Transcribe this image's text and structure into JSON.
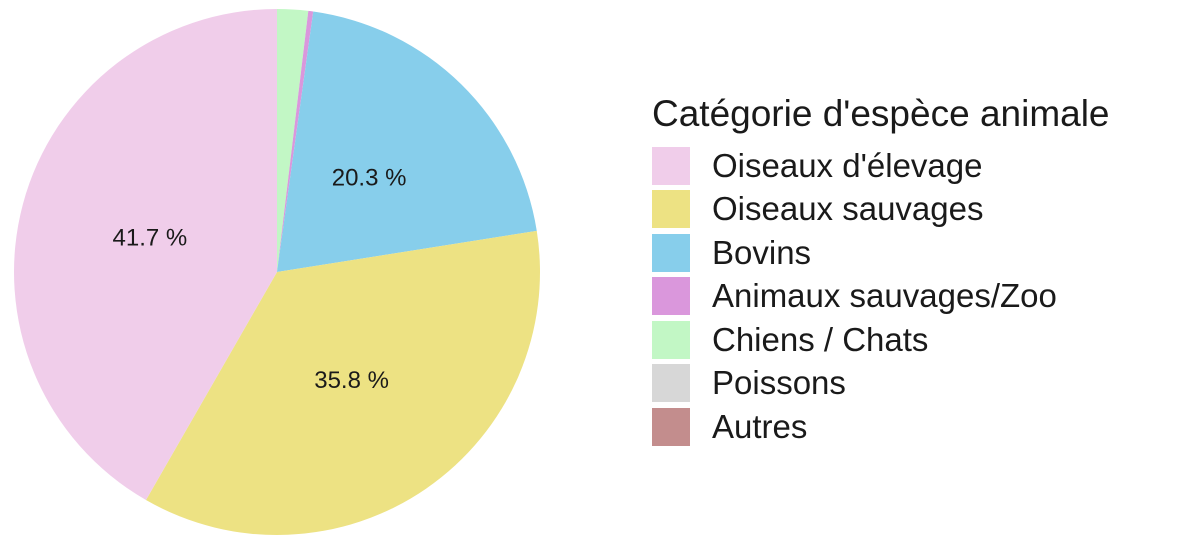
{
  "chart_data": {
    "type": "pie",
    "legend": {
      "title": "Catégorie d'espèce animale",
      "position": "right"
    },
    "slices": [
      {
        "label": "Oiseaux d'élevage",
        "value": 41.7,
        "value_label": "41.7 %",
        "color": "#F0CDEA"
      },
      {
        "label": "Oiseaux sauvages",
        "value": 35.8,
        "value_label": "35.8 %",
        "color": "#EDE283"
      },
      {
        "label": "Bovins",
        "value": 20.3,
        "value_label": "20.3 %",
        "color": "#87CEEB"
      },
      {
        "label": "Animaux sauvages/Zoo",
        "value": 0.3,
        "value_label": "",
        "color": "#DA97DC"
      },
      {
        "label": "Chiens / Chats",
        "value": 1.9,
        "value_label": "",
        "color": "#C2F7C5"
      },
      {
        "label": "Poissons",
        "value": 0,
        "value_label": "",
        "color": "#D7D7D7"
      },
      {
        "label": "Autres",
        "value": 0,
        "value_label": "",
        "color": "#C38D8D"
      }
    ]
  }
}
